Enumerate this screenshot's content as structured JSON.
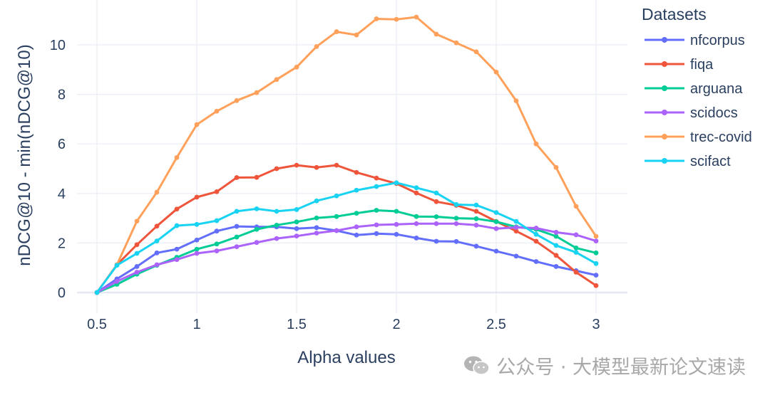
{
  "chart_data": {
    "type": "line",
    "xlabel": "Alpha values",
    "ylabel": "nDCG@10 - min(nDCG@10)",
    "xlim": [
      0.4,
      3.15
    ],
    "ylim": [
      -0.4,
      11.4
    ],
    "xticks": [
      0.5,
      1,
      1.5,
      2,
      2.5,
      3
    ],
    "xtick_labels": [
      "0.5",
      "1",
      "1.5",
      "2",
      "2.5",
      "3"
    ],
    "yticks": [
      0,
      2,
      4,
      6,
      8,
      10
    ],
    "ytick_labels": [
      "0",
      "2",
      "4",
      "6",
      "8",
      "10"
    ],
    "grid": true,
    "legend_title": "Datasets",
    "legend_position": "right",
    "x": [
      0.5,
      0.6,
      0.7,
      0.8,
      0.9,
      1.0,
      1.1,
      1.2,
      1.3,
      1.4,
      1.5,
      1.6,
      1.7,
      1.8,
      1.9,
      2.0,
      2.1,
      2.2,
      2.3,
      2.4,
      2.5,
      2.6,
      2.7,
      2.8,
      2.9,
      3.0
    ],
    "series": [
      {
        "name": "nfcorpus",
        "color": "#636efa",
        "values": [
          0,
          0.55,
          1.05,
          1.6,
          1.75,
          2.12,
          2.48,
          2.67,
          2.65,
          2.65,
          2.58,
          2.62,
          2.5,
          2.32,
          2.38,
          2.35,
          2.2,
          2.07,
          2.06,
          1.87,
          1.67,
          1.47,
          1.25,
          1.05,
          0.88,
          0.7
        ]
      },
      {
        "name": "fiqa",
        "color": "#ef553b",
        "values": [
          0,
          1.12,
          1.93,
          2.68,
          3.37,
          3.85,
          4.07,
          4.64,
          4.65,
          5.0,
          5.14,
          5.05,
          5.14,
          4.85,
          4.62,
          4.4,
          4.02,
          3.67,
          3.52,
          3.28,
          2.87,
          2.48,
          2.07,
          1.5,
          0.82,
          0.28
        ]
      },
      {
        "name": "arguana",
        "color": "#00cc96",
        "values": [
          0,
          0.33,
          0.74,
          1.1,
          1.42,
          1.75,
          1.96,
          2.24,
          2.55,
          2.72,
          2.85,
          3.01,
          3.07,
          3.2,
          3.32,
          3.28,
          3.07,
          3.06,
          3.0,
          2.98,
          2.86,
          2.65,
          2.55,
          2.27,
          1.8,
          1.6
        ]
      },
      {
        "name": "scidocs",
        "color": "#ab63fa",
        "values": [
          0,
          0.45,
          0.82,
          1.12,
          1.33,
          1.58,
          1.68,
          1.85,
          2.02,
          2.18,
          2.28,
          2.4,
          2.5,
          2.65,
          2.73,
          2.75,
          2.78,
          2.78,
          2.78,
          2.72,
          2.58,
          2.63,
          2.6,
          2.43,
          2.33,
          2.08
        ]
      },
      {
        "name": "trec-covid",
        "color": "#ffa15a",
        "values": [
          0,
          1.12,
          2.88,
          4.05,
          5.45,
          6.78,
          7.32,
          7.75,
          8.07,
          8.6,
          9.1,
          9.93,
          10.53,
          10.4,
          11.05,
          11.03,
          11.12,
          10.43,
          10.08,
          9.72,
          8.9,
          7.74,
          6.0,
          5.05,
          3.48,
          2.27
        ]
      },
      {
        "name": "scifact",
        "color": "#19d3f3",
        "values": [
          0,
          1.1,
          1.58,
          2.08,
          2.7,
          2.75,
          2.9,
          3.28,
          3.38,
          3.28,
          3.35,
          3.7,
          3.9,
          4.13,
          4.28,
          4.43,
          4.23,
          4.02,
          3.55,
          3.53,
          3.23,
          2.87,
          2.35,
          1.9,
          1.62,
          1.17
        ]
      }
    ]
  },
  "watermark": {
    "text": "公众号 · 大模型最新论文速读",
    "icon": "wechat-icon"
  }
}
